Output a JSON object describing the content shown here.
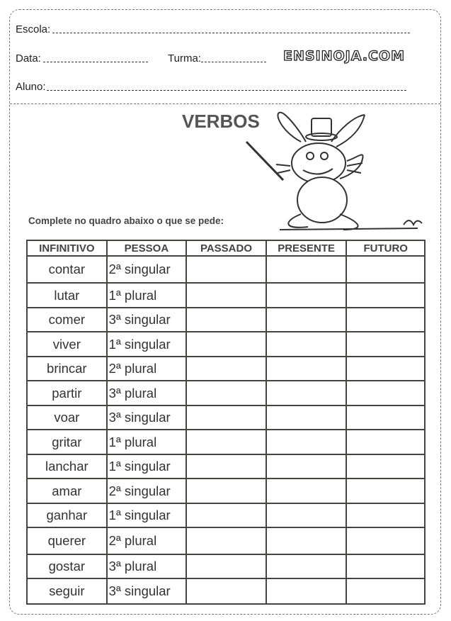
{
  "header": {
    "escola_label": "Escola:",
    "data_label": "Data:",
    "turma_label": "Turma:",
    "aluno_label": "Aluno:",
    "logo": "ENSINOJA.COM"
  },
  "title": "VERBOS",
  "instruction": "Complete no quadro abaixo o que se pede:",
  "table": {
    "columns": [
      "INFINITIVO",
      "PESSOA",
      "PASSADO",
      "PRESENTE",
      "FUTURO"
    ],
    "rows": [
      {
        "infinitivo": "contar",
        "pessoa": "2ª singular"
      },
      {
        "infinitivo": "lutar",
        "pessoa": "1ª plural"
      },
      {
        "infinitivo": "comer",
        "pessoa": "3ª singular"
      },
      {
        "infinitivo": "viver",
        "pessoa": "1ª singular"
      },
      {
        "infinitivo": "brincar",
        "pessoa": "2ª plural"
      },
      {
        "infinitivo": "partir",
        "pessoa": "3ª plural"
      },
      {
        "infinitivo": "voar",
        "pessoa": "3ª singular"
      },
      {
        "infinitivo": "gritar",
        "pessoa": "1ª plural"
      },
      {
        "infinitivo": "lanchar",
        "pessoa": "1ª singular"
      },
      {
        "infinitivo": "amar",
        "pessoa": "2ª singular"
      },
      {
        "infinitivo": "ganhar",
        "pessoa": "1ª singular"
      },
      {
        "infinitivo": "querer",
        "pessoa": "2ª plural"
      },
      {
        "infinitivo": "gostar",
        "pessoa": "3ª plural"
      },
      {
        "infinitivo": "seguir",
        "pessoa": "3ª singular"
      }
    ]
  }
}
